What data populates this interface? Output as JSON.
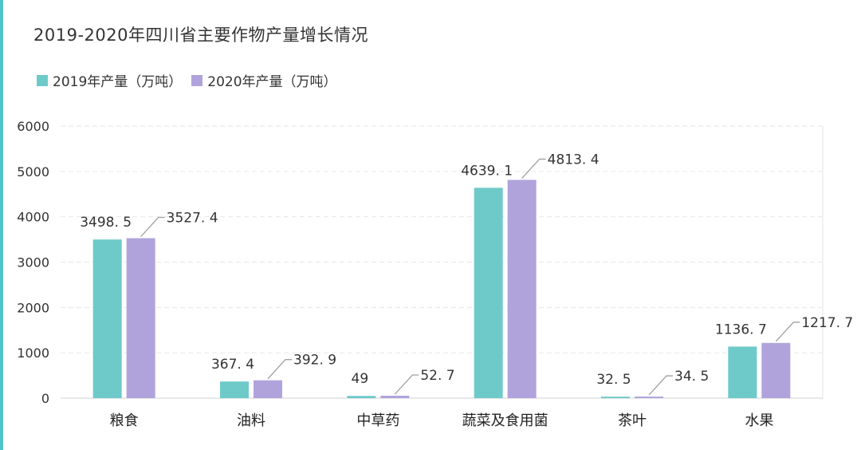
{
  "chart_data": {
    "type": "bar",
    "title": "2019-2020年四川省主要作物产量增长情况",
    "categories": [
      "粮食",
      "油料",
      "中草药",
      "蔬菜及食用菌",
      "茶叶",
      "水果"
    ],
    "series": [
      {
        "name": "2019年产量（万吨）",
        "color": "#6ecac9",
        "values": [
          3498.5,
          367.4,
          49,
          4639.1,
          32.5,
          1136.7
        ],
        "labels": [
          "3498. 5",
          "367. 4",
          "49",
          "4639. 1",
          "32. 5",
          "1136. 7"
        ]
      },
      {
        "name": "2020年产量（万吨）",
        "color": "#b0a3dc",
        "values": [
          3527.4,
          392.9,
          52.7,
          4813.4,
          34.5,
          1217.7
        ],
        "labels": [
          "3527. 4",
          "392. 9",
          "52. 7",
          "4813. 4",
          "34. 5",
          "1217. 7"
        ]
      }
    ],
    "ylim": [
      0,
      6000
    ],
    "yticks": [
      "0",
      "1000",
      "2000",
      "3000",
      "4000",
      "5000",
      "6000"
    ],
    "grid": true,
    "legend": "top-left"
  }
}
